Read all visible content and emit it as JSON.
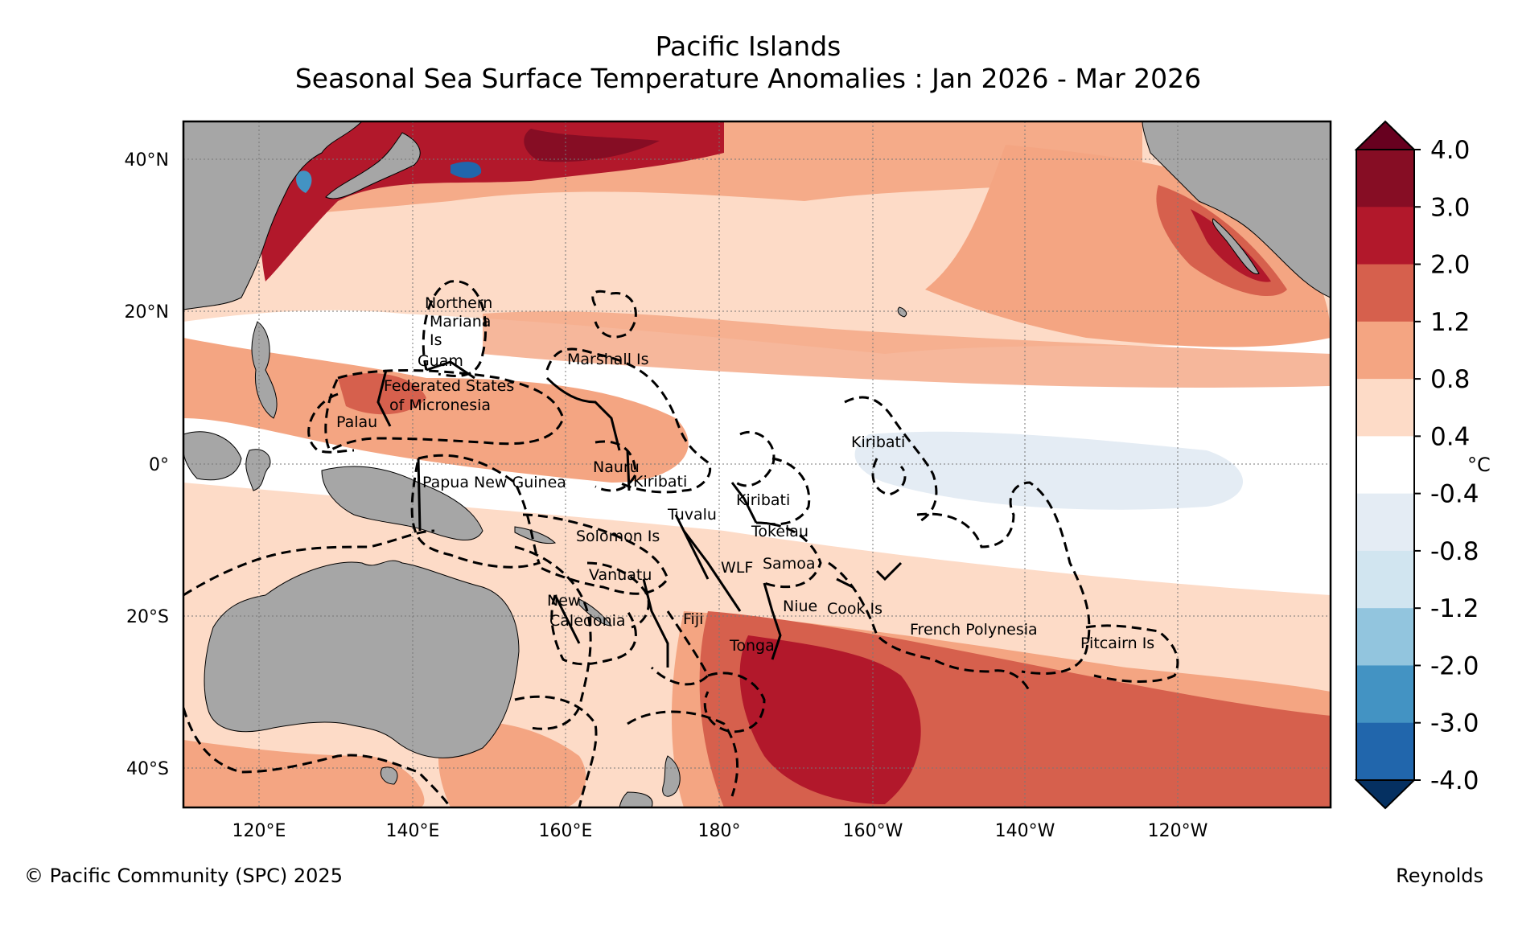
{
  "title": "Pacific Islands",
  "subtitle": "Seasonal Sea Surface Temperature Anomalies : Jan 2026 - Mar 2026",
  "map": {
    "lon_labels": [
      "120°E",
      "140°E",
      "160°E",
      "180°",
      "160°W",
      "140°W",
      "120°W"
    ],
    "lat_labels": [
      "40°N",
      "20°N",
      "0°",
      "20°S",
      "40°S"
    ],
    "regions": [
      "Northern",
      "Mariana",
      "Is",
      "Guam",
      "Marshall Is",
      "Federated States",
      "of Micronesia",
      "Palau",
      "Kiribati",
      "Nauru",
      "Kiribati",
      "Papua New Guinea",
      "Kiribati",
      "Tuvalu",
      "Tokelau",
      "Solomon Is",
      "WLF",
      "Samoa",
      "Vanuatu",
      "New",
      "Caledonia",
      "Fiji",
      "Niue",
      "Cook Is",
      "French Polynesia",
      "Pitcairn Is",
      "Tonga"
    ]
  },
  "colorbar": {
    "unit": "°C",
    "ticks": [
      "4.0",
      "3.0",
      "2.0",
      "1.2",
      "0.8",
      "0.4",
      "-0.4",
      "-0.8",
      "-1.2",
      "-2.0",
      "-3.0",
      "-4.0"
    ],
    "colors": [
      "#67001f",
      "#860d24",
      "#b2182b",
      "#d6604d",
      "#f4a582",
      "#fddbc7",
      "#ffffff",
      "#e4ecf4",
      "#d1e5f0",
      "#92c5de",
      "#4393c3",
      "#2166ac",
      "#053061"
    ],
    "land_color": "#a6a6a6"
  },
  "footer": {
    "copyright": "© Pacific Community (SPC) 2025",
    "source": "Reynolds"
  }
}
